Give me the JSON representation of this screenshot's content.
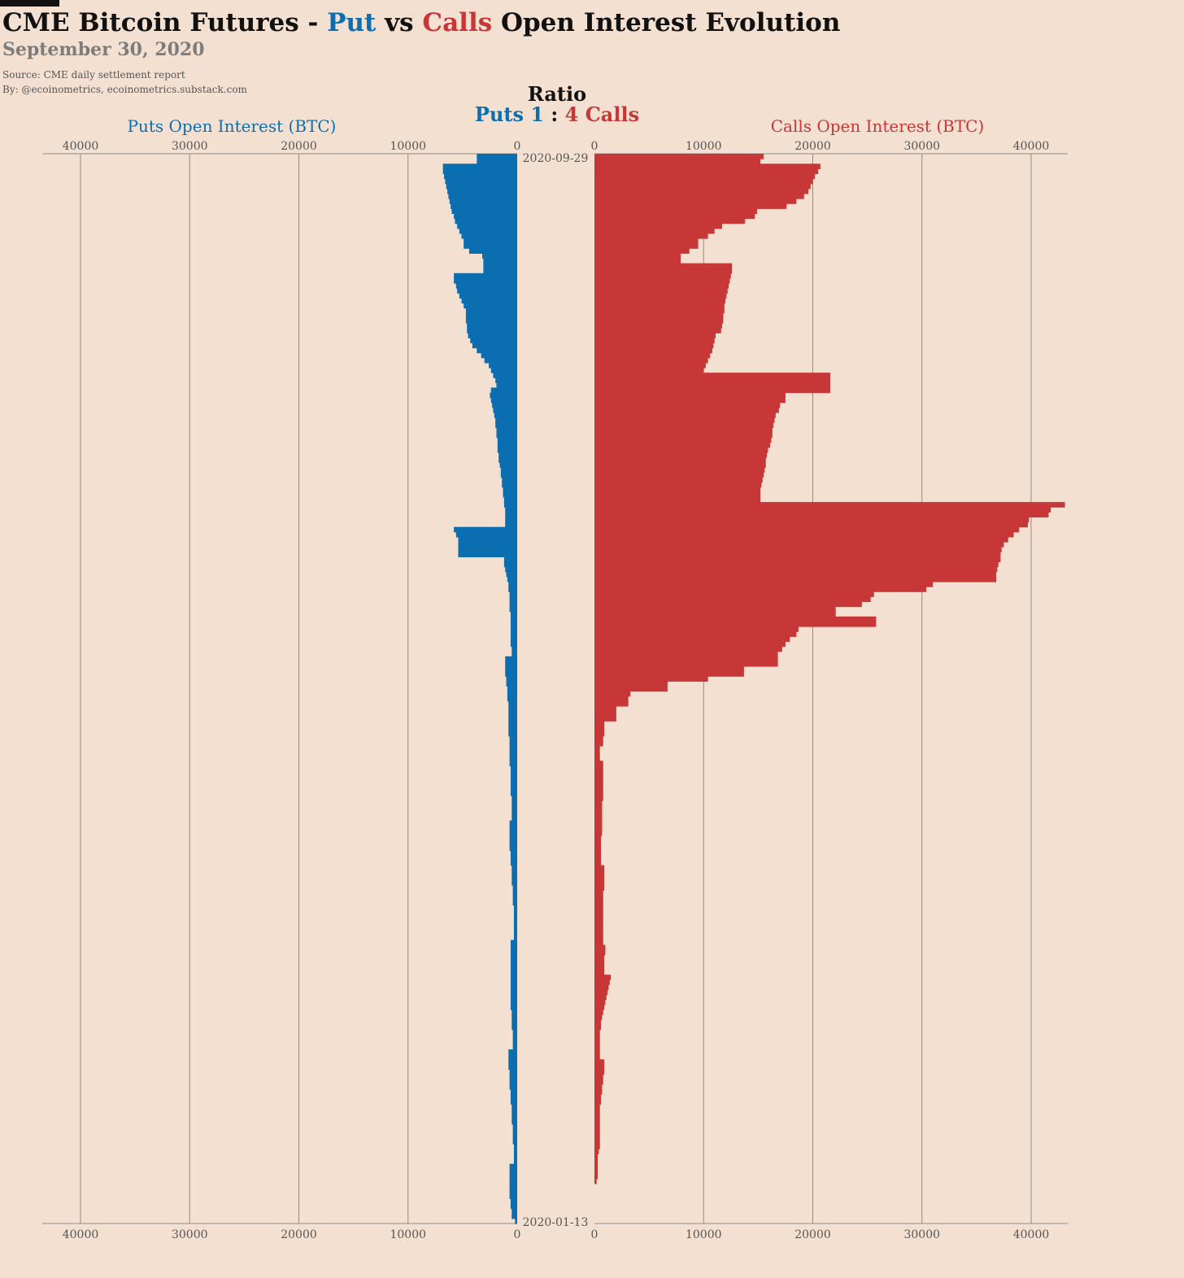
{
  "header": {
    "title_part1": "CME Bitcoin Futures - ",
    "title_put": "Put",
    "title_vs": " vs ",
    "title_calls": "Calls",
    "title_rest": " Open Interest Evolution",
    "subtitle": "September 30, 2020",
    "source": "Source: CME daily settlement report",
    "byline": "By: @ecoinometrics, ecoinometrics.substack.com"
  },
  "ratio": {
    "title": "Ratio",
    "puts_label": "Puts 1",
    "separator": " : ",
    "calls_label": "4 Calls"
  },
  "colors": {
    "puts": "#0a6eb0",
    "calls": "#c83737",
    "background": "#f3e0d0",
    "grid": "#8c8c8c"
  },
  "chart_data": {
    "type": "bar",
    "orientation": "horizontal",
    "layout": "back-to-back",
    "left_axis_label": "Puts Open Interest (BTC)",
    "right_axis_label": "Calls Open Interest (BTC)",
    "left_ticks": [
      "40000",
      "30000",
      "20000",
      "10000",
      "0"
    ],
    "right_ticks": [
      "0",
      "10000",
      "20000",
      "30000",
      "40000"
    ],
    "xlim": [
      0,
      43000
    ],
    "date_top": "2020-09-29",
    "date_bottom": "2020-01-13",
    "grid": true,
    "series": [
      {
        "name": "Puts",
        "values": [
          3700,
          3700,
          6800,
          6800,
          6700,
          6600,
          6500,
          6400,
          6300,
          6200,
          6100,
          6000,
          5800,
          5700,
          5500,
          5300,
          5100,
          4900,
          4900,
          4400,
          3200,
          3100,
          3100,
          3100,
          5800,
          5800,
          5600,
          5500,
          5300,
          5100,
          4900,
          4700,
          4700,
          4700,
          4600,
          4600,
          4500,
          4300,
          4100,
          3700,
          3300,
          3000,
          2600,
          2400,
          2200,
          2000,
          1900,
          2400,
          2500,
          2400,
          2300,
          2200,
          2100,
          2000,
          2000,
          1900,
          1900,
          1800,
          1800,
          1800,
          1700,
          1700,
          1600,
          1500,
          1500,
          1400,
          1400,
          1300,
          1300,
          1200,
          1200,
          1100,
          1100,
          1100,
          1100,
          5800,
          5600,
          5400,
          5400,
          5400,
          5400,
          1200,
          1200,
          1100,
          1000,
          900,
          800,
          800,
          700,
          700,
          700,
          700,
          600,
          600,
          600,
          600,
          600,
          600,
          600,
          500,
          500,
          1100,
          1100,
          1100,
          1100,
          1000,
          1000,
          900,
          900,
          900,
          800,
          800,
          800,
          800,
          800,
          800,
          800,
          700,
          700,
          700,
          700,
          700,
          700,
          600,
          600,
          600,
          600,
          600,
          600,
          500,
          500,
          500,
          500,
          500,
          700,
          700,
          700,
          700,
          700,
          700,
          600,
          600,
          600,
          500,
          500,
          500,
          500,
          400,
          400,
          400,
          400,
          300,
          300,
          300,
          300,
          300,
          300,
          300,
          600,
          600,
          600,
          600,
          600,
          600,
          600,
          600,
          600,
          600,
          600,
          600,
          600,
          600,
          500,
          500,
          500,
          500,
          400,
          400,
          400,
          400,
          800,
          800,
          800,
          800,
          700,
          700,
          700,
          700,
          600,
          600,
          600,
          500,
          500,
          500,
          500,
          400,
          400,
          400,
          400,
          300,
          300,
          300,
          300,
          700,
          700,
          700,
          700,
          700,
          700,
          700,
          600,
          600,
          500,
          500,
          200
        ]
      },
      {
        "name": "Calls",
        "values": [
          15500,
          15200,
          20700,
          20500,
          20200,
          20000,
          19800,
          19600,
          19200,
          18500,
          17600,
          14900,
          14700,
          13800,
          11700,
          11000,
          10400,
          9500,
          9500,
          8700,
          7900,
          7900,
          12600,
          12600,
          12500,
          12400,
          12300,
          12200,
          12100,
          12000,
          11900,
          11900,
          11800,
          11800,
          11700,
          11600,
          11100,
          11000,
          10900,
          10800,
          10600,
          10400,
          10200,
          10000,
          21600,
          21600,
          21600,
          21600,
          17500,
          17500,
          17000,
          16900,
          16600,
          16500,
          16400,
          16300,
          16300,
          16200,
          16100,
          15900,
          15800,
          15700,
          15700,
          15600,
          15500,
          15400,
          15300,
          15200,
          15200,
          15200,
          43100,
          41800,
          41600,
          39800,
          39700,
          38900,
          38400,
          37900,
          37500,
          37300,
          37200,
          37200,
          37000,
          36900,
          36800,
          36800,
          31000,
          30400,
          25600,
          25300,
          24500,
          22100,
          22100,
          25800,
          25800,
          18700,
          18500,
          17900,
          17500,
          17200,
          16800,
          16800,
          16800,
          13700,
          13700,
          10400,
          6700,
          6700,
          3300,
          3100,
          3100,
          2000,
          2000,
          2000,
          900,
          900,
          900,
          800,
          800,
          500,
          500,
          500,
          800,
          800,
          800,
          800,
          800,
          800,
          800,
          800,
          700,
          700,
          700,
          700,
          700,
          700,
          700,
          600,
          600,
          600,
          600,
          600,
          600,
          900,
          900,
          900,
          900,
          900,
          800,
          800,
          800,
          800,
          800,
          800,
          800,
          800,
          800,
          800,
          800,
          1000,
          1000,
          900,
          900,
          900,
          900,
          1500,
          1400,
          1300,
          1200,
          1100,
          1000,
          900,
          800,
          700,
          600,
          600,
          500,
          500,
          500,
          500,
          500,
          500,
          900,
          900,
          900,
          800,
          800,
          700,
          700,
          600,
          600,
          500,
          500,
          500,
          500,
          500,
          500,
          500,
          500,
          500,
          400,
          300,
          300,
          300,
          300,
          300,
          200
        ]
      }
    ]
  }
}
